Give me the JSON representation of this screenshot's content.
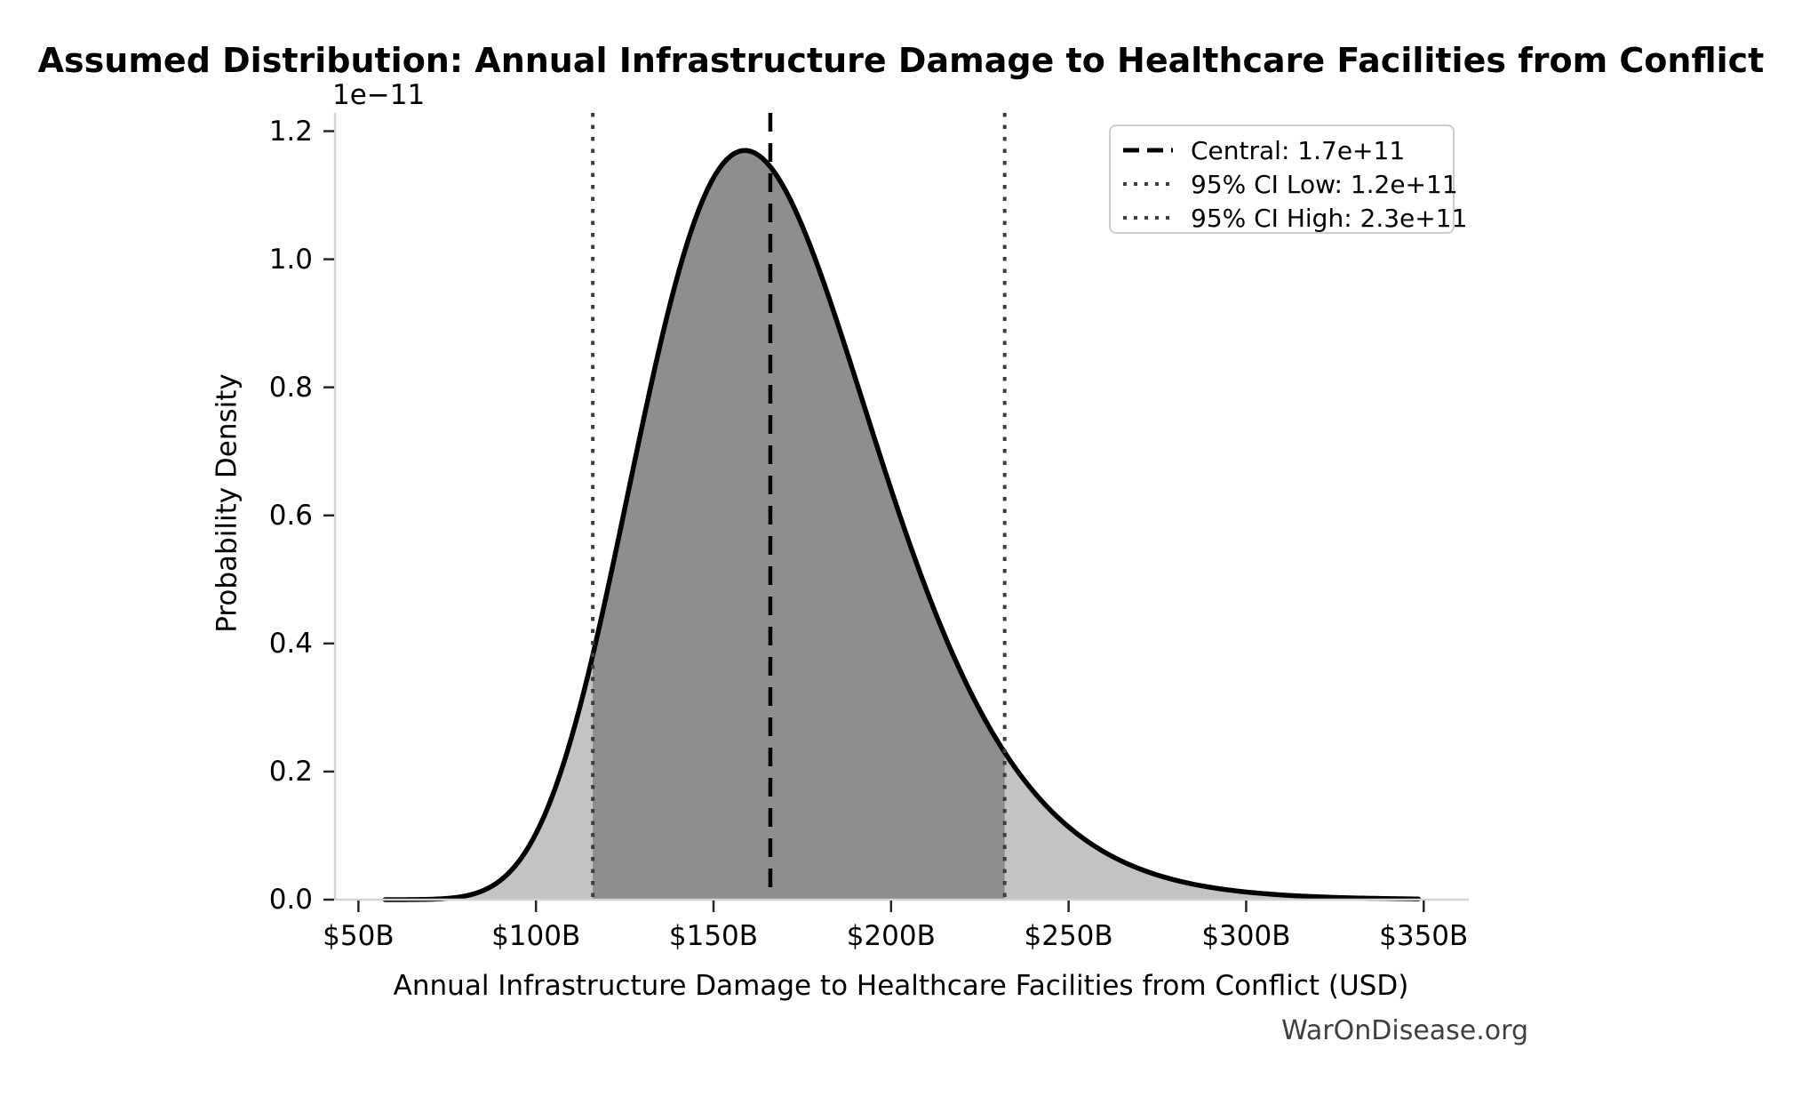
{
  "watermark": "WarOnDisease.org",
  "chart_data": {
    "type": "area",
    "title": "Assumed Distribution: Annual Infrastructure Damage to Healthcare Facilities from Conflict",
    "xlabel": "Annual Infrastructure Damage to Healthcare Facilities from Conflict (USD)",
    "ylabel": "Probability Density",
    "y_axis_offset_text": "1e−11",
    "grid": false,
    "legend_position": "upper right",
    "x_ticks": [
      {
        "value_B": 50,
        "label": "$50B"
      },
      {
        "value_B": 100,
        "label": "$100B"
      },
      {
        "value_B": 150,
        "label": "$150B"
      },
      {
        "value_B": 200,
        "label": "$200B"
      },
      {
        "value_B": 250,
        "label": "$250B"
      },
      {
        "value_B": 300,
        "label": "$300B"
      },
      {
        "value_B": 350,
        "label": "$350B"
      }
    ],
    "y_ticks": [
      {
        "value": 0.0,
        "label": "0.0"
      },
      {
        "value": 0.2,
        "label": "0.2"
      },
      {
        "value": 0.4,
        "label": "0.4"
      },
      {
        "value": 0.6,
        "label": "0.6"
      },
      {
        "value": 0.8,
        "label": "0.8"
      },
      {
        "value": 1.0,
        "label": "1.0"
      },
      {
        "value": 1.2,
        "label": "1.2"
      }
    ],
    "xlim_B": [
      43.4,
      362.7
    ],
    "ylim_1e11": [
      0,
      1.2285
    ],
    "distribution": {
      "shape": "lognormal",
      "median_B": 166,
      "sigma": 0.21,
      "curve_range_B": [
        57.5,
        348.5
      ],
      "peak_density_1e11": 1.17,
      "peak_at_B": 158.8
    },
    "markers": {
      "central_B": 166,
      "ci_low_B": 116,
      "ci_high_B": 232
    },
    "legend": [
      {
        "label": "Central: 1.7e+11",
        "line_style": "dashed",
        "color": "#000000"
      },
      {
        "label": "95% CI Low: 1.2e+11",
        "line_style": "dotted",
        "color": "#3d3d3d"
      },
      {
        "label": "95% CI High: 2.3e+11",
        "line_style": "dotted",
        "color": "#3d3d3d"
      }
    ],
    "colors": {
      "curve": "#000000",
      "fill_outer": "#c3c3c3",
      "fill_inner": "#8e8e8e",
      "central_line": "#000000",
      "ci_line": "#3d3d3d",
      "spine": "#d2d2d2",
      "tick": "#262626",
      "text": "#000000",
      "watermark": "#404040"
    }
  }
}
